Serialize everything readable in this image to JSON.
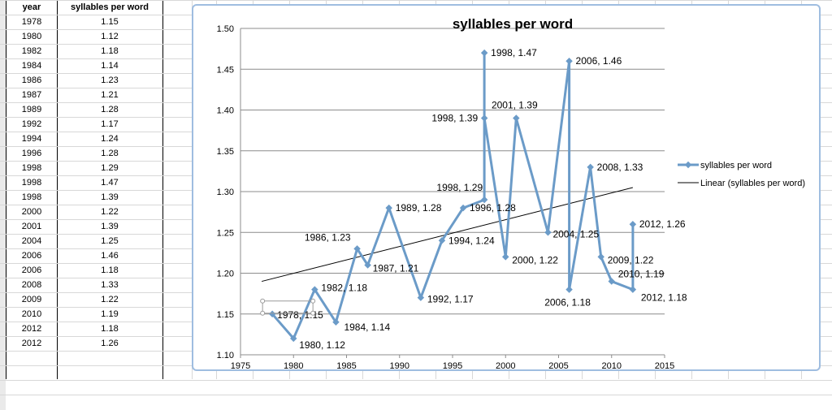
{
  "table": {
    "headers": [
      "year",
      "syllables per word"
    ],
    "rows": [
      [
        "1978",
        "1.15"
      ],
      [
        "1980",
        "1.12"
      ],
      [
        "1982",
        "1.18"
      ],
      [
        "1984",
        "1.14"
      ],
      [
        "1986",
        "1.23"
      ],
      [
        "1987",
        "1.21"
      ],
      [
        "1989",
        "1.28"
      ],
      [
        "1992",
        "1.17"
      ],
      [
        "1994",
        "1.24"
      ],
      [
        "1996",
        "1.28"
      ],
      [
        "1998",
        "1.29"
      ],
      [
        "1998",
        "1.47"
      ],
      [
        "1998",
        "1.39"
      ],
      [
        "2000",
        "1.22"
      ],
      [
        "2001",
        "1.39"
      ],
      [
        "2004",
        "1.25"
      ],
      [
        "2006",
        "1.46"
      ],
      [
        "2006",
        "1.18"
      ],
      [
        "2008",
        "1.33"
      ],
      [
        "2009",
        "1.22"
      ],
      [
        "2010",
        "1.19"
      ],
      [
        "2012",
        "1.18"
      ],
      [
        "2012",
        "1.26"
      ]
    ]
  },
  "chart_data": {
    "type": "line",
    "title": "syllables per word",
    "xlabel": "",
    "ylabel": "",
    "xlim": [
      1975,
      2015
    ],
    "ylim": [
      1.1,
      1.5
    ],
    "x_ticks": [
      "1975",
      "1980",
      "1985",
      "1990",
      "1995",
      "2000",
      "2005",
      "2010",
      "2015"
    ],
    "y_ticks": [
      "1.10",
      "1.15",
      "1.20",
      "1.25",
      "1.30",
      "1.35",
      "1.40",
      "1.45",
      "1.50"
    ],
    "grid": "horizontal",
    "legend_position": "right",
    "series": [
      {
        "name": "syllables per word",
        "color": "#6b9bc8",
        "x": [
          1978,
          1980,
          1982,
          1984,
          1986,
          1987,
          1989,
          1992,
          1994,
          1996,
          1998,
          1998,
          1998,
          2000,
          2001,
          2004,
          2006,
          2006,
          2008,
          2009,
          2010,
          2012,
          2012
        ],
        "y": [
          1.15,
          1.12,
          1.18,
          1.14,
          1.23,
          1.21,
          1.28,
          1.17,
          1.24,
          1.28,
          1.29,
          1.47,
          1.39,
          1.22,
          1.39,
          1.25,
          1.46,
          1.18,
          1.33,
          1.22,
          1.19,
          1.18,
          1.26
        ],
        "labels": [
          "1978, 1.15",
          "1980, 1.12",
          "1982, 1.18",
          "1984, 1.14",
          "1986, 1.23",
          "1987, 1.21",
          "1989, 1.28",
          "1992, 1.17",
          "1994, 1.24",
          "1996, 1.28",
          "1998, 1.29",
          "1998, 1.47",
          "1998, 1.39",
          "2000, 1.22",
          "2001, 1.39",
          "2004, 1.25",
          "2006, 1.46",
          "2006, 1.18",
          "2008, 1.33",
          "2009, 1.22",
          "2010, 1.19",
          "2012, 1.18",
          "2012, 1.26"
        ]
      },
      {
        "name": "Linear (syllables per word)",
        "color": "#000000",
        "type": "trendline",
        "x": [
          1977,
          2012
        ],
        "y": [
          1.19,
          1.305
        ]
      }
    ]
  }
}
